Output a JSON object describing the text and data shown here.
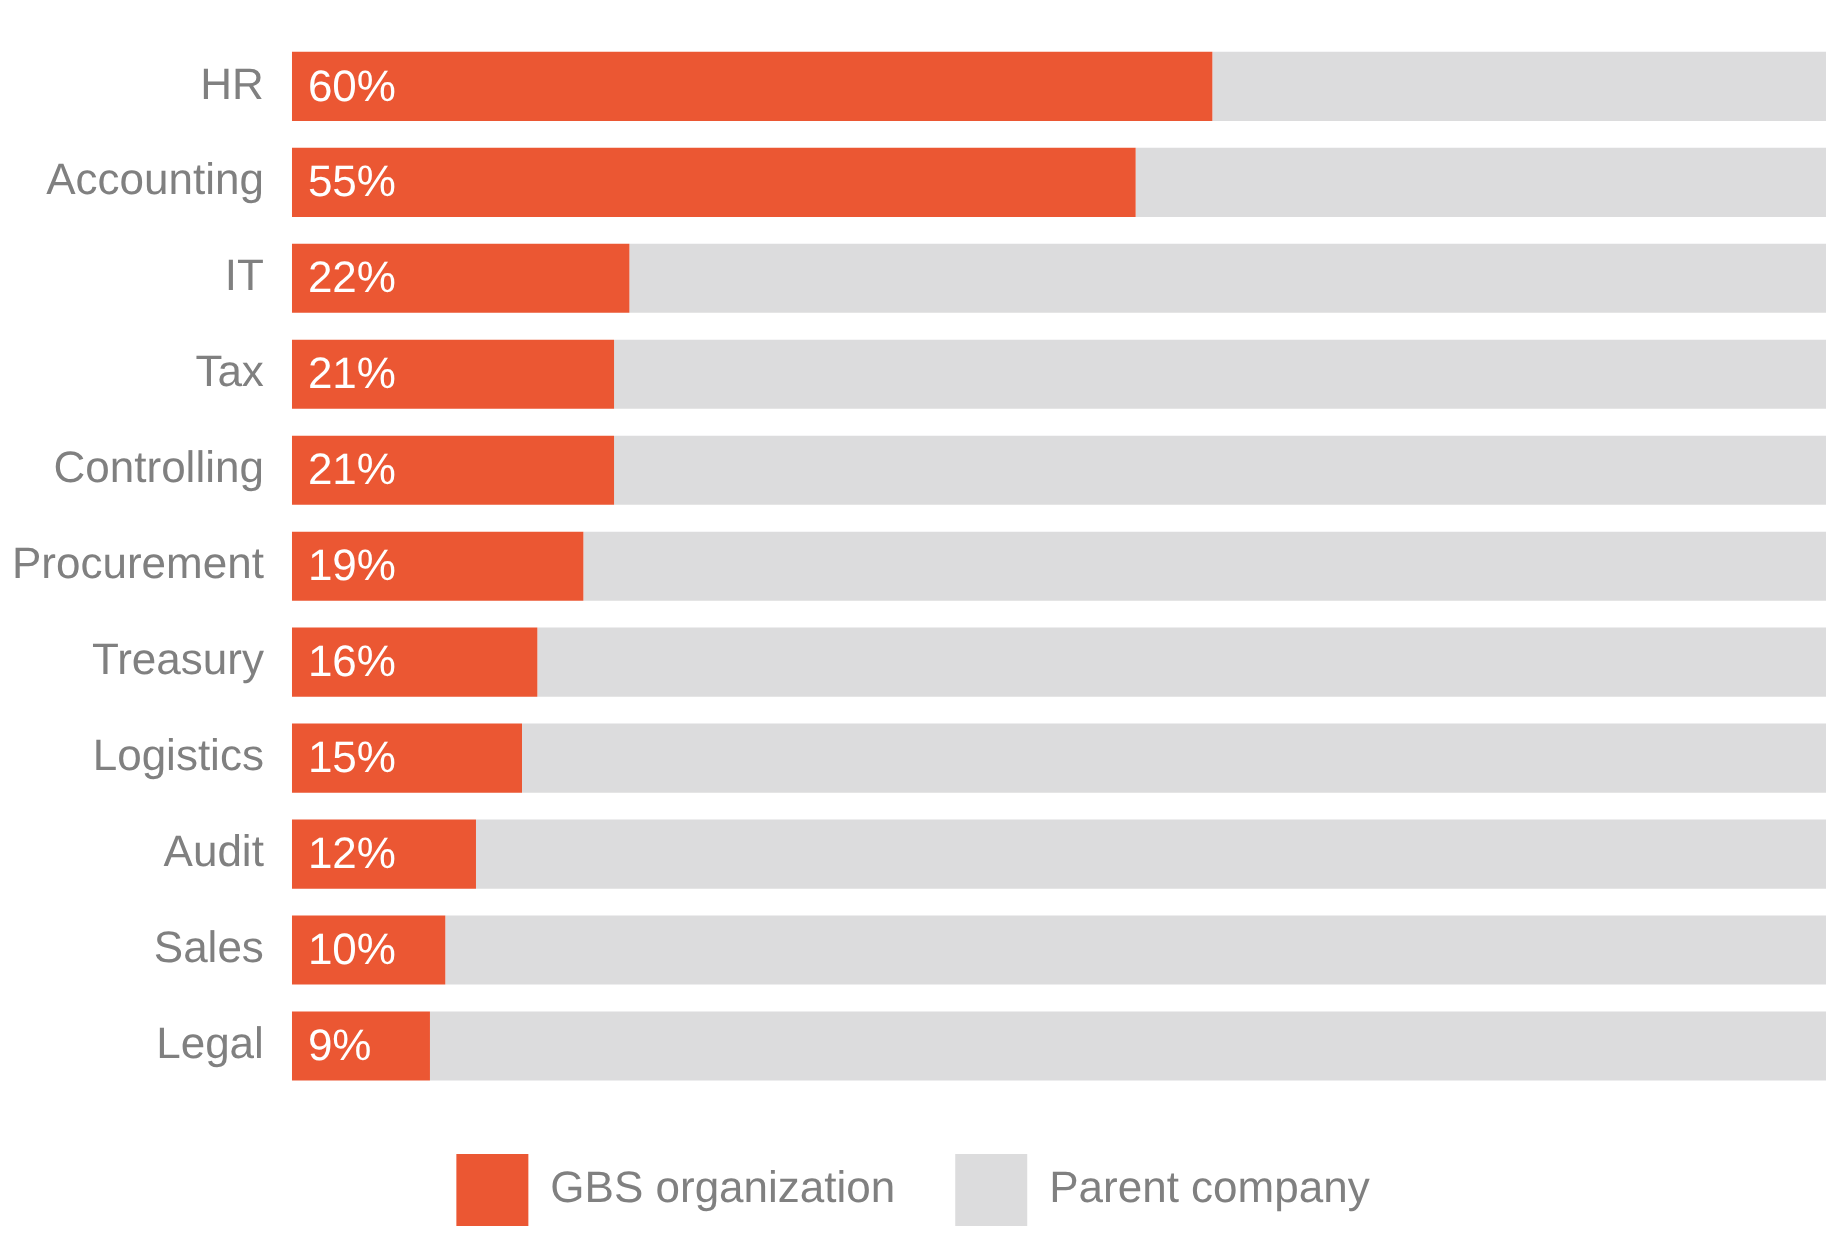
{
  "chart_data": {
    "type": "bar",
    "orientation": "horizontal",
    "stacked": true,
    "categories": [
      "HR",
      "Accounting",
      "IT",
      "Tax",
      "Controlling",
      "Procurement",
      "Treasury",
      "Logistics",
      "Audit",
      "Sales",
      "Legal"
    ],
    "series": [
      {
        "name": "GBS organization",
        "color": "#eb5733",
        "values": [
          60,
          55,
          22,
          21,
          21,
          19,
          16,
          15,
          12,
          10,
          9
        ],
        "value_labels": [
          "60%",
          "55%",
          "22%",
          "21%",
          "21%",
          "19%",
          "16%",
          "15%",
          "12%",
          "10%",
          "9%"
        ]
      },
      {
        "name": "Parent company",
        "color": "#dcdcdd",
        "values": [
          40,
          45,
          78,
          79,
          79,
          81,
          84,
          85,
          88,
          90,
          91
        ]
      }
    ],
    "xlim": [
      0,
      100
    ],
    "tick_labels": "y",
    "legend": "bottom"
  }
}
